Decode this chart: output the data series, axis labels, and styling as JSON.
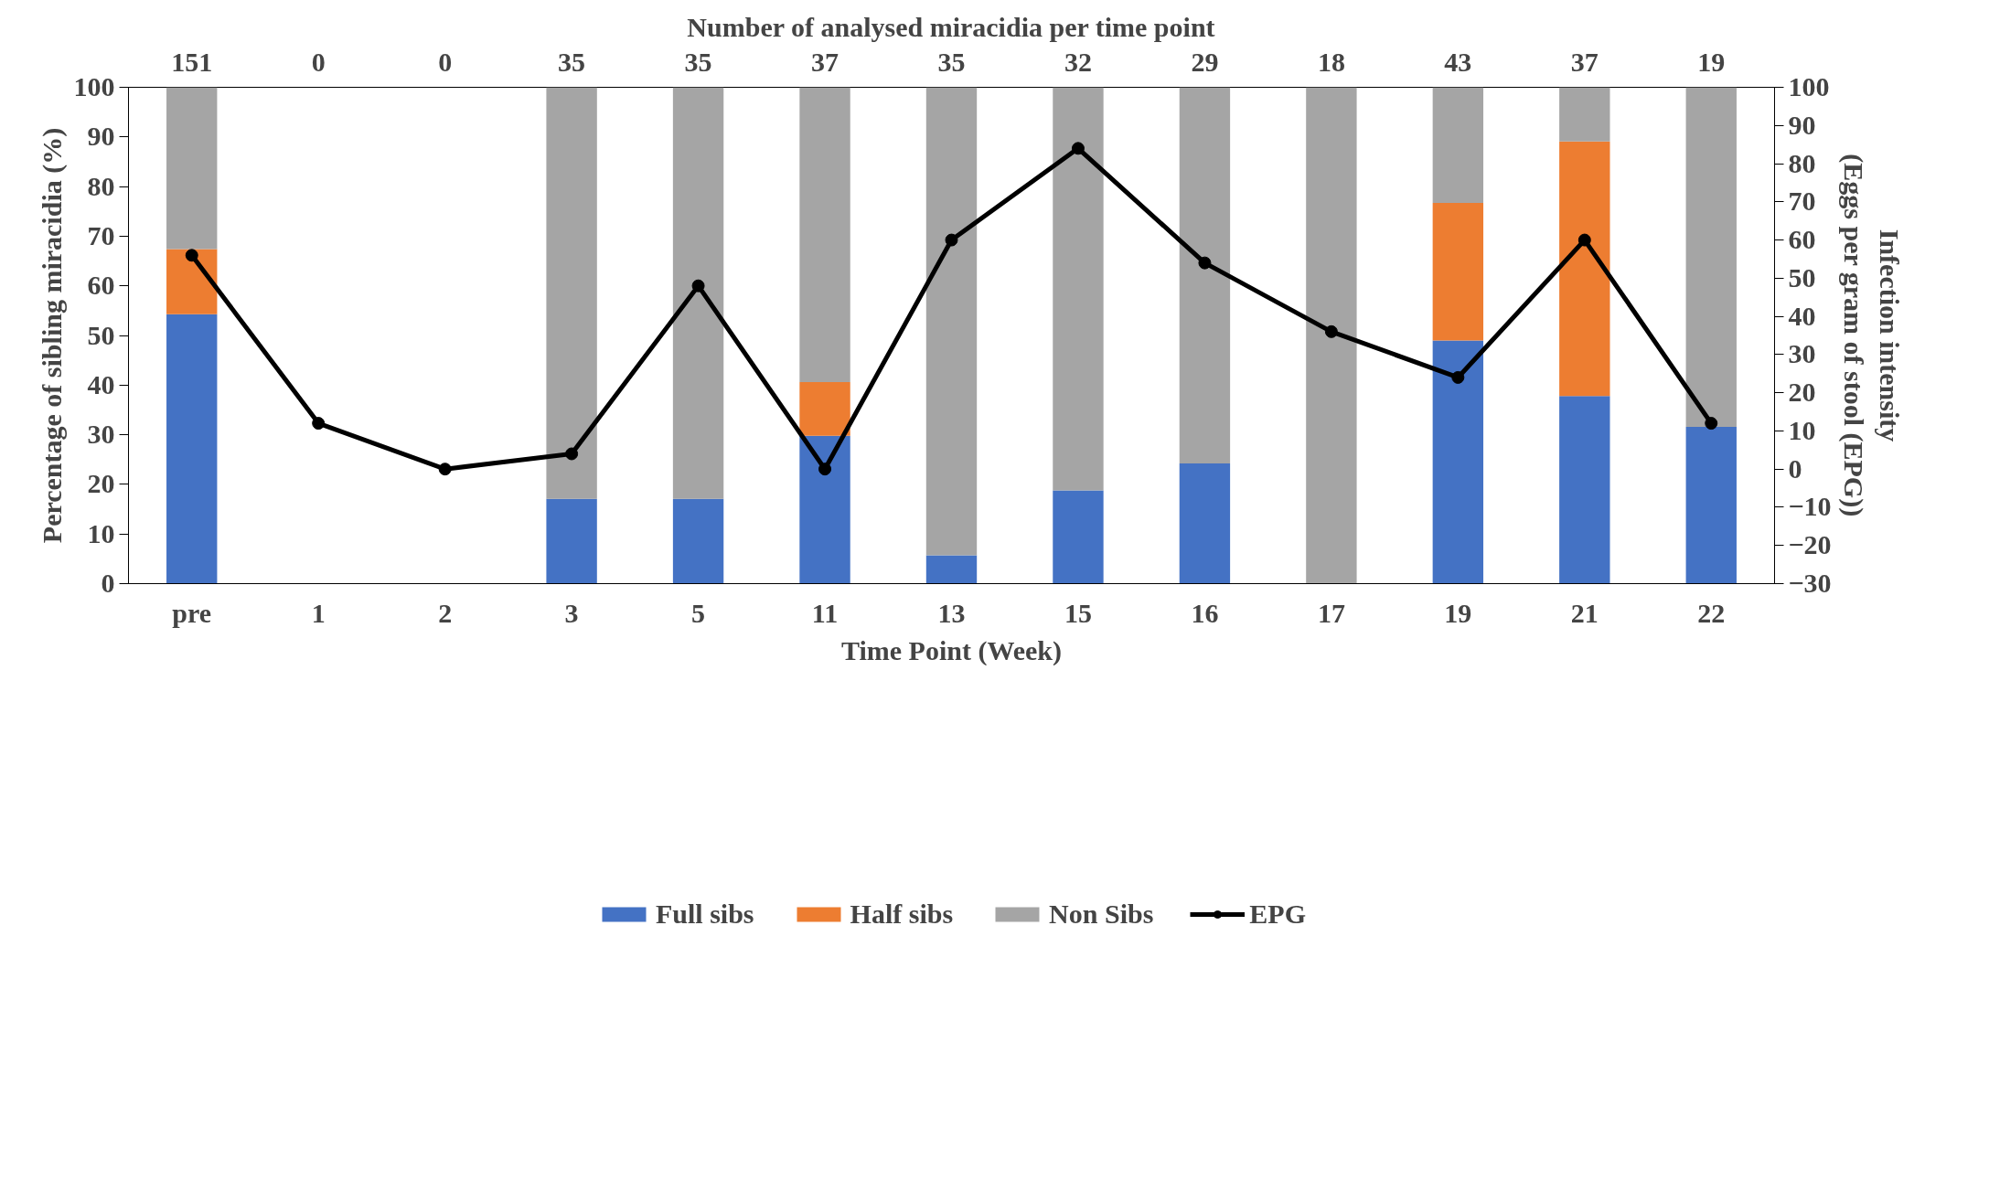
{
  "chart_data": {
    "type": "bar",
    "stacked": true,
    "title": "Number of analysed miracidia per time point",
    "xlabel": "Time Point (Week)",
    "ylabel": "Percentage of sibling miracidia (%)",
    "y2label": "Infection intensity\n(Eggs per gram of stool (EPG))",
    "categories": [
      "pre",
      "1",
      "2",
      "3",
      "5",
      "11",
      "13",
      "15",
      "16",
      "17",
      "19",
      "21",
      "22"
    ],
    "series": [
      {
        "name": "Full sibs",
        "color": "#4472c4",
        "values": [
          54.3,
          null,
          null,
          17.1,
          17.1,
          29.8,
          5.7,
          18.8,
          24.2,
          0,
          49.0,
          37.8,
          31.6
        ]
      },
      {
        "name": "Half sibs",
        "color": "#ed7d31",
        "values": [
          13.1,
          null,
          null,
          0,
          0,
          10.8,
          0,
          0,
          0,
          0,
          27.7,
          51.3,
          0
        ]
      },
      {
        "name": "Non Sibs",
        "color": "#a5a5a5",
        "values": [
          32.6,
          null,
          null,
          82.9,
          82.9,
          59.4,
          94.3,
          81.2,
          75.8,
          100,
          23.3,
          10.9,
          68.4
        ]
      },
      {
        "name": "EPG",
        "type": "line",
        "axis": "y2",
        "color": "#000000",
        "marker": "circle",
        "values": [
          56,
          12,
          0,
          4,
          48,
          0,
          60,
          84,
          54,
          36,
          24,
          60,
          12
        ]
      }
    ],
    "ylim": [
      0,
      100
    ],
    "yticks": [
      0,
      10,
      20,
      30,
      40,
      50,
      60,
      70,
      80,
      90,
      100
    ],
    "y2lim": [
      -30,
      100
    ],
    "y2ticks": [
      -30,
      -20,
      -10,
      0,
      10,
      20,
      30,
      40,
      50,
      60,
      70,
      80,
      90,
      100
    ],
    "annotations": [
      "151",
      "0",
      "0",
      "35",
      "35",
      "37",
      "35",
      "32",
      "29",
      "18",
      "43",
      "37",
      "19"
    ],
    "grid": false,
    "legend": "bottom"
  }
}
